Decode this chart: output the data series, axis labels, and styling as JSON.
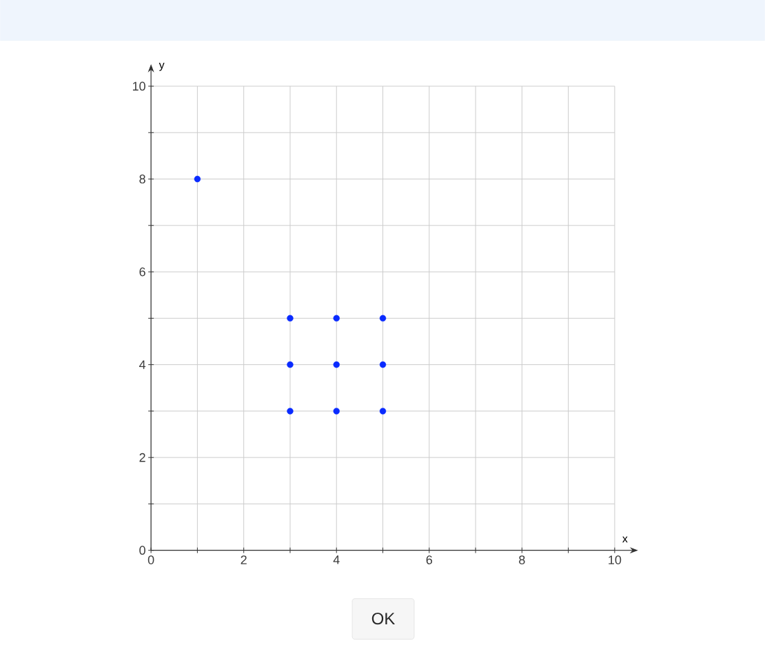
{
  "chart_data": {
    "type": "scatter",
    "xlabel": "x",
    "ylabel": "y",
    "x": [
      1,
      3,
      4,
      5,
      3,
      4,
      5,
      3,
      4,
      5
    ],
    "values": [
      8,
      5,
      5,
      5,
      4,
      4,
      4,
      3,
      3,
      3
    ],
    "color": "#0a2bff",
    "marker": "circle",
    "grid": true,
    "xlim": [
      0,
      10
    ],
    "ylim": [
      0,
      10
    ],
    "xticks": [
      0,
      {
        "value": 1,
        "label": null
      },
      2,
      {
        "value": 3,
        "label": null
      },
      4,
      {
        "value": 5,
        "label": null
      },
      6,
      {
        "value": 7,
        "label": null
      },
      8,
      {
        "value": 9,
        "label": null
      },
      10
    ],
    "yticks": [
      0,
      {
        "value": 1,
        "label": null
      },
      2,
      {
        "value": 3,
        "label": null
      },
      4,
      {
        "value": 5,
        "label": null
      },
      6,
      {
        "value": 7,
        "label": null
      },
      8,
      {
        "value": 9,
        "label": null
      },
      10
    ],
    "annotations": [
      "OK"
    ]
  }
}
